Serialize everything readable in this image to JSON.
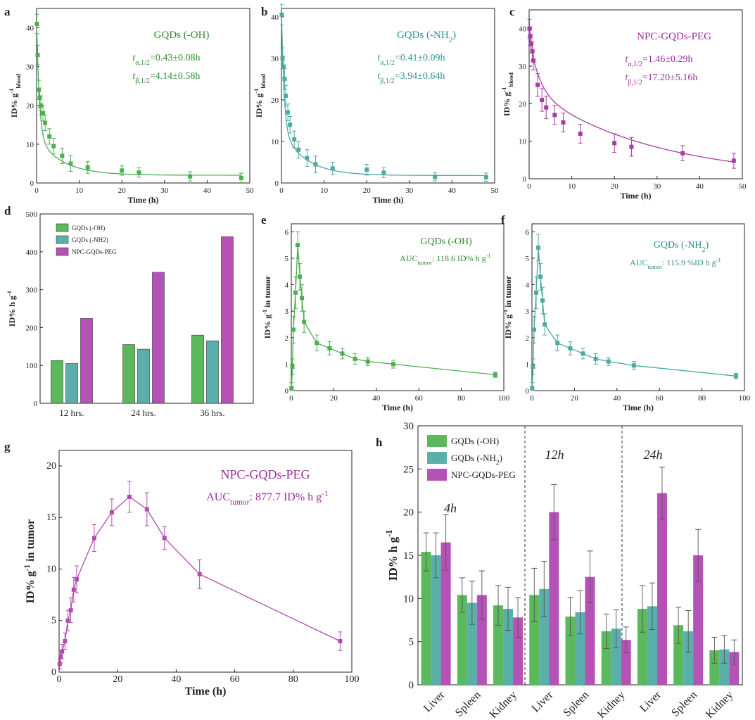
{
  "colors": {
    "green": "#5cb85c",
    "greenDark": "#2e8b2e",
    "teal": "#5aafab",
    "tealDark": "#2f8f88",
    "purple": "#b552b5",
    "purpleDark": "#9b2f9b"
  },
  "chart_data": [
    {
      "id": "a",
      "type": "scatter",
      "panel_letter": "a",
      "color": "#4caf50",
      "label_color": "#2e8b2e",
      "xlabel": "Time (h)",
      "ylabel_main": "ID% g",
      "ylabel_sup": "-1",
      "ylabel_sub": "blood",
      "xlim": [
        0,
        50
      ],
      "ylim": [
        0,
        45
      ],
      "xticks": [
        0,
        10,
        20,
        30,
        40,
        50
      ],
      "yticks": [
        0,
        10,
        20,
        30,
        40
      ],
      "xtick_labels": [
        "0",
        "10",
        "20",
        "30",
        "40",
        "50"
      ],
      "ytick_labels": [
        "0",
        "10",
        "20",
        "30",
        "40"
      ],
      "points": [
        {
          "x": 0.08,
          "y": 41,
          "err": 2.5
        },
        {
          "x": 0.25,
          "y": 33,
          "err": 2.5
        },
        {
          "x": 0.5,
          "y": 24,
          "err": 2.5
        },
        {
          "x": 0.75,
          "y": 22,
          "err": 2.5
        },
        {
          "x": 1,
          "y": 20,
          "err": 2.5
        },
        {
          "x": 1.5,
          "y": 18,
          "err": 2
        },
        {
          "x": 2,
          "y": 15.5,
          "err": 2
        },
        {
          "x": 3,
          "y": 12,
          "err": 2
        },
        {
          "x": 4,
          "y": 9.5,
          "err": 2
        },
        {
          "x": 6,
          "y": 7,
          "err": 2
        },
        {
          "x": 8,
          "y": 5,
          "err": 2
        },
        {
          "x": 12,
          "y": 4,
          "err": 1.5
        },
        {
          "x": 20,
          "y": 3.2,
          "err": 1.2
        },
        {
          "x": 24,
          "y": 2.7,
          "err": 1.2
        },
        {
          "x": 36,
          "y": 1.7,
          "err": 1.2
        },
        {
          "x": 48,
          "y": 1.3,
          "err": 1.2
        }
      ],
      "fit": {
        "A": 30,
        "alpha": 1.6,
        "B": 10,
        "beta": 0.17,
        "C": 2.0
      },
      "series_name": "GQDs (-OH)",
      "t_alpha_prefix": "t",
      "t_alpha_sub": "α,1/2",
      "t_alpha_value": "=0.43±0.08h",
      "t_beta_prefix": "t",
      "t_beta_sub": "β,1/2",
      "t_beta_value": "=4.14±0.58h"
    },
    {
      "id": "b",
      "type": "scatter",
      "panel_letter": "b",
      "color": "#4fa9a3",
      "label_color": "#2f8f88",
      "xlabel": "Time (h)",
      "ylabel_main": "ID% g",
      "ylabel_sup": "-1",
      "ylabel_sub": "blood",
      "xlim": [
        0,
        50
      ],
      "ylim": [
        0,
        42
      ],
      "xticks": [
        0,
        10,
        20,
        30,
        40,
        50
      ],
      "yticks": [
        0,
        10,
        20,
        30,
        40
      ],
      "xtick_labels": [
        "0",
        "10",
        "20",
        "30",
        "40",
        "50"
      ],
      "ytick_labels": [
        "0",
        "10",
        "20",
        "30",
        "40"
      ],
      "points": [
        {
          "x": 0.08,
          "y": 40.5,
          "err": 2.5
        },
        {
          "x": 0.25,
          "y": 30,
          "err": 2.5
        },
        {
          "x": 0.5,
          "y": 28,
          "err": 2.5
        },
        {
          "x": 0.75,
          "y": 25,
          "err": 2.5
        },
        {
          "x": 1,
          "y": 21,
          "err": 2.5
        },
        {
          "x": 1.5,
          "y": 17,
          "err": 2
        },
        {
          "x": 2,
          "y": 14,
          "err": 2
        },
        {
          "x": 3,
          "y": 10.5,
          "err": 2
        },
        {
          "x": 4,
          "y": 8,
          "err": 2
        },
        {
          "x": 6,
          "y": 6,
          "err": 2
        },
        {
          "x": 8,
          "y": 4.5,
          "err": 2
        },
        {
          "x": 12,
          "y": 3.5,
          "err": 1.5
        },
        {
          "x": 20,
          "y": 3.2,
          "err": 1.3
        },
        {
          "x": 24,
          "y": 2.5,
          "err": 1.2
        },
        {
          "x": 36,
          "y": 1.5,
          "err": 1
        },
        {
          "x": 48,
          "y": 1.4,
          "err": 1
        }
      ],
      "fit": {
        "A": 29,
        "alpha": 1.7,
        "B": 11,
        "beta": 0.18,
        "C": 1.8
      },
      "series_name": "GQDs (-NH",
      "series_name_sub": "2",
      "series_name_end": ")",
      "t_alpha_prefix": "t",
      "t_alpha_sub": "α,1/2",
      "t_alpha_value": "=0.41±0.09h",
      "t_beta_prefix": "t",
      "t_beta_sub": "β,1/2",
      "t_beta_value": "=3.94±0.64h"
    },
    {
      "id": "c",
      "type": "scatter",
      "panel_letter": "c",
      "color": "#a63da6",
      "label_color": "#9b2f9b",
      "xlabel": "Time (h)",
      "ylabel_main": "ID% g",
      "ylabel_sup": "-1",
      "ylabel_sub": "blood",
      "xlim": [
        0,
        50
      ],
      "ylim": [
        0,
        45
      ],
      "xticks": [
        0,
        10,
        20,
        30,
        40,
        50
      ],
      "yticks": [
        0,
        10,
        20,
        30,
        40
      ],
      "xtick_labels": [
        "0",
        "10",
        "20",
        "30",
        "40",
        "50"
      ],
      "ytick_labels": [
        "0",
        "10",
        "20",
        "30",
        "40"
      ],
      "points": [
        {
          "x": 0.08,
          "y": 40,
          "err": 2.5
        },
        {
          "x": 0.25,
          "y": 38,
          "err": 2.5
        },
        {
          "x": 0.5,
          "y": 36,
          "err": 2.5
        },
        {
          "x": 0.75,
          "y": 34,
          "err": 2.5
        },
        {
          "x": 1,
          "y": 31.5,
          "err": 2.5
        },
        {
          "x": 2,
          "y": 25,
          "err": 3
        },
        {
          "x": 3,
          "y": 21,
          "err": 3
        },
        {
          "x": 4,
          "y": 19,
          "err": 3
        },
        {
          "x": 6,
          "y": 17,
          "err": 2.5
        },
        {
          "x": 8,
          "y": 15,
          "err": 2.5
        },
        {
          "x": 12,
          "y": 12,
          "err": 2.5
        },
        {
          "x": 20,
          "y": 9.5,
          "err": 2.5
        },
        {
          "x": 24,
          "y": 8.5,
          "err": 2.5
        },
        {
          "x": 36,
          "y": 6.8,
          "err": 2
        },
        {
          "x": 48,
          "y": 4.8,
          "err": 2
        }
      ],
      "fit": {
        "A": 14,
        "alpha": 0.45,
        "B": 24,
        "beta": 0.035,
        "C": 0
      },
      "series_name": "NPC-GQDs-PEG",
      "t_alpha_prefix": "t",
      "t_alpha_sub": "α,1/2",
      "t_alpha_value": "=1.46±0.29h",
      "t_beta_prefix": "t",
      "t_beta_sub": "β,1/2",
      "t_beta_value": "=17.20±5.16h"
    },
    {
      "id": "d",
      "type": "bar",
      "panel_letter": "d",
      "categories": [
        "12 hrs.",
        "24 hrs.",
        "36 hrs."
      ],
      "series": [
        {
          "name": "GQDs (-OH)",
          "color": "#5cb85c",
          "values": [
            113,
            155,
            180
          ]
        },
        {
          "name": "GQDs (-NH2)",
          "color": "#5aafab",
          "values": [
            105,
            143,
            165
          ]
        },
        {
          "name": "NPC-GQDs-PEG",
          "color": "#b552b5",
          "values": [
            224,
            346,
            440
          ]
        }
      ],
      "ylabel_main": "ID% h g",
      "ylabel_sup": "-1",
      "ylim": [
        0,
        500
      ],
      "yticks": [
        0,
        100,
        200,
        300,
        400,
        500
      ],
      "ytick_labels": [
        "0",
        "100",
        "200",
        "300",
        "400",
        "500"
      ]
    },
    {
      "id": "e",
      "type": "line",
      "panel_letter": "e",
      "color": "#4caf50",
      "label_color": "#2e8b2e",
      "xlabel": "Time (h)",
      "ylabel_main": "ID% g",
      "ylabel_sup": "-1",
      "ylabel_tail": " in tumor",
      "xlim": [
        0,
        100
      ],
      "ylim": [
        0,
        6.3
      ],
      "xticks": [
        0,
        20,
        40,
        60,
        80,
        100
      ],
      "yticks": [
        0,
        1,
        2,
        3,
        4,
        5,
        6
      ],
      "xtick_labels": [
        "0",
        "20",
        "40",
        "60",
        "80",
        "100"
      ],
      "ytick_labels": [
        "0",
        "1",
        "2",
        "3",
        "4",
        "5",
        "6"
      ],
      "points": [
        {
          "x": 0.1,
          "y": 0.1,
          "err": 0.2
        },
        {
          "x": 0.5,
          "y": 0.9,
          "err": 0.3
        },
        {
          "x": 1,
          "y": 2.3,
          "err": 0.5
        },
        {
          "x": 2,
          "y": 3.7,
          "err": 0.6
        },
        {
          "x": 3,
          "y": 5.5,
          "err": 0.5
        },
        {
          "x": 4,
          "y": 4.3,
          "err": 0.5
        },
        {
          "x": 5,
          "y": 3.5,
          "err": 0.5
        },
        {
          "x": 6,
          "y": 2.6,
          "err": 0.4
        },
        {
          "x": 12,
          "y": 1.8,
          "err": 0.3
        },
        {
          "x": 18,
          "y": 1.6,
          "err": 0.25
        },
        {
          "x": 24,
          "y": 1.4,
          "err": 0.2
        },
        {
          "x": 30,
          "y": 1.2,
          "err": 0.2
        },
        {
          "x": 36,
          "y": 1.1,
          "err": 0.15
        },
        {
          "x": 48,
          "y": 1.0,
          "err": 0.15
        },
        {
          "x": 96,
          "y": 0.6,
          "err": 0.1
        }
      ],
      "series_name": "GQDs (-OH)",
      "auc_prefix": "AUC",
      "auc_sub": "tumor",
      "auc_value": ": 118.6 ID% h g",
      "auc_sup": "-1"
    },
    {
      "id": "f",
      "type": "line",
      "panel_letter": "f",
      "color": "#4fa9a3",
      "label_color": "#2f8f88",
      "xlabel": "Time (h)",
      "ylabel_main": "ID% g",
      "ylabel_sup": "-1",
      "ylabel_tail": " in tumor",
      "xlim": [
        0,
        100
      ],
      "ylim": [
        0,
        6.3
      ],
      "xticks": [
        0,
        20,
        40,
        60,
        80,
        100
      ],
      "yticks": [
        0,
        1,
        2,
        3,
        4,
        5,
        6
      ],
      "xtick_labels": [
        "0",
        "20",
        "40",
        "60",
        "80",
        "100"
      ],
      "ytick_labels": [
        "0",
        "1",
        "2",
        "3",
        "4",
        "5",
        "6"
      ],
      "points": [
        {
          "x": 0.1,
          "y": 0.1,
          "err": 0.2
        },
        {
          "x": 0.5,
          "y": 0.9,
          "err": 0.3
        },
        {
          "x": 1,
          "y": 2.3,
          "err": 0.5
        },
        {
          "x": 2,
          "y": 3.7,
          "err": 0.6
        },
        {
          "x": 3,
          "y": 5.4,
          "err": 0.5
        },
        {
          "x": 4,
          "y": 4.3,
          "err": 0.5
        },
        {
          "x": 5,
          "y": 3.4,
          "err": 0.5
        },
        {
          "x": 6,
          "y": 2.5,
          "err": 0.4
        },
        {
          "x": 12,
          "y": 1.8,
          "err": 0.3
        },
        {
          "x": 18,
          "y": 1.6,
          "err": 0.25
        },
        {
          "x": 24,
          "y": 1.4,
          "err": 0.2
        },
        {
          "x": 30,
          "y": 1.2,
          "err": 0.2
        },
        {
          "x": 36,
          "y": 1.1,
          "err": 0.15
        },
        {
          "x": 48,
          "y": 0.95,
          "err": 0.15
        },
        {
          "x": 96,
          "y": 0.55,
          "err": 0.1
        }
      ],
      "series_name": "GQDs (-NH",
      "series_name_sub": "2",
      "series_name_end": ")",
      "auc_prefix": "AUC",
      "auc_sub": "tumor",
      "auc_value": ": 115.9 %ID h g",
      "auc_sup": "-1"
    },
    {
      "id": "g",
      "type": "line",
      "panel_letter": "g",
      "color": "#b04cb0",
      "label_color": "#9b2f9b",
      "xlabel": "Time (h)",
      "ylabel_main": "ID% g",
      "ylabel_sup": "-1",
      "ylabel_tail": " in tumor",
      "xlim": [
        0,
        100
      ],
      "ylim": [
        0,
        21.5
      ],
      "xticks": [
        0,
        20,
        40,
        60,
        80,
        100
      ],
      "yticks": [
        0,
        5,
        10,
        15,
        20
      ],
      "xtick_labels": [
        "0",
        "20",
        "40",
        "60",
        "80",
        "100"
      ],
      "ytick_labels": [
        "0",
        "5",
        "10",
        "15",
        "20"
      ],
      "points": [
        {
          "x": 0.2,
          "y": 0.8,
          "err": 0.5
        },
        {
          "x": 0.5,
          "y": 1.5,
          "err": 0.6
        },
        {
          "x": 1,
          "y": 2,
          "err": 0.7
        },
        {
          "x": 2,
          "y": 3,
          "err": 0.8
        },
        {
          "x": 3,
          "y": 5,
          "err": 1
        },
        {
          "x": 4,
          "y": 6,
          "err": 1.2
        },
        {
          "x": 5,
          "y": 8,
          "err": 1.2
        },
        {
          "x": 6,
          "y": 9,
          "err": 1.3
        },
        {
          "x": 12,
          "y": 13,
          "err": 1.3
        },
        {
          "x": 18,
          "y": 15.5,
          "err": 1.3
        },
        {
          "x": 24,
          "y": 17,
          "err": 1.5
        },
        {
          "x": 30,
          "y": 15.8,
          "err": 1.6
        },
        {
          "x": 36,
          "y": 13,
          "err": 1.1
        },
        {
          "x": 48,
          "y": 9.5,
          "err": 1.4
        },
        {
          "x": 96,
          "y": 3,
          "err": 0.9
        }
      ],
      "series_name": "NPC-GQDs-PEG",
      "auc_prefix": "AUC",
      "auc_sub": "tumor",
      "auc_value": ": 877.7 ID% h g",
      "auc_sup": "-1"
    },
    {
      "id": "h",
      "type": "bar",
      "panel_letter": "h",
      "groups": [
        "4h",
        "12h",
        "24h"
      ],
      "categories": [
        "Liver",
        "Spleen",
        "Kidney"
      ],
      "series": [
        {
          "name": "GQDs (-OH)",
          "color": "#5cb85c",
          "values": [
            [
              15.4,
              10.4,
              9.2
            ],
            [
              10.4,
              7.9,
              6.2
            ],
            [
              8.8,
              6.9,
              4.0
            ]
          ],
          "errors": [
            [
              2.2,
              2.0,
              2.3
            ],
            [
              3.1,
              2.2,
              2.0
            ],
            [
              2.7,
              2.1,
              1.5
            ]
          ]
        },
        {
          "name": "GQDs (-NH",
          "name_sub": "2",
          "name_end": ")",
          "color": "#5aafab",
          "values": [
            [
              15.0,
              9.5,
              8.8
            ],
            [
              11.1,
              8.4,
              6.5
            ],
            [
              9.1,
              6.2,
              4.1
            ]
          ],
          "errors": [
            [
              2.6,
              2.5,
              2.5
            ],
            [
              3.2,
              2.5,
              2.2
            ],
            [
              2.7,
              2.4,
              1.6
            ]
          ]
        },
        {
          "name": "NPC-GQDs-PEG",
          "color": "#b552b5",
          "values": [
            [
              16.5,
              10.4,
              7.8
            ],
            [
              20.0,
              12.5,
              5.2
            ],
            [
              22.2,
              15.0,
              3.8
            ]
          ],
          "errors": [
            [
              3.2,
              2.8,
              2.3
            ],
            [
              3.2,
              3.0,
              1.5
            ],
            [
              3.0,
              3.0,
              1.4
            ]
          ]
        }
      ],
      "ylabel_main": "ID% h g",
      "ylabel_sup": "-1",
      "ylim": [
        0,
        30
      ],
      "yticks": [
        0,
        5,
        10,
        15,
        20,
        25,
        30
      ],
      "ytick_labels": [
        "0",
        "5",
        "10",
        "15",
        "20",
        "25",
        "30"
      ]
    }
  ]
}
